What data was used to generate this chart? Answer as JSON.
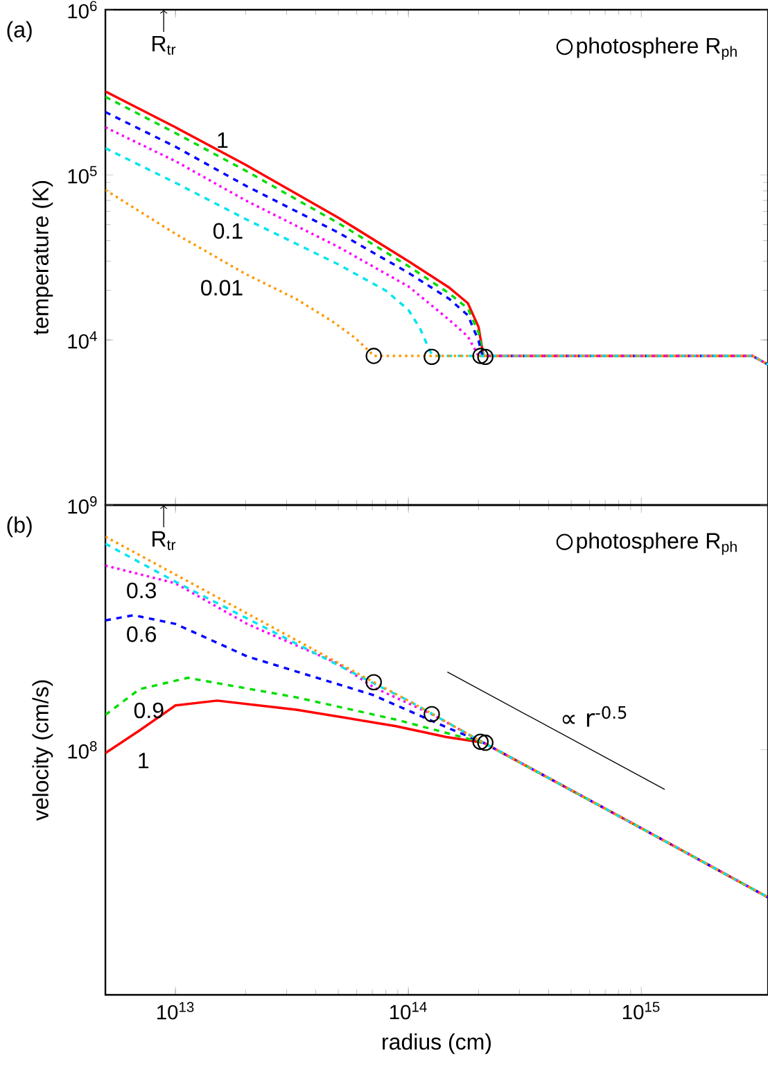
{
  "chart_data": [
    {
      "type": "line",
      "ylabel": "temperature (K)",
      "tick_labels": "y",
      "legend": "top right",
      "log": "xy",
      "annotations": [
        "(a)",
        "R$_{tr}$"
      ],
      "xlim": [
        5000000000000.0,
        3500000000000000.0
      ],
      "ylim": [
        1000,
        1000000
      ],
      "xticks": [
        {
          "value": 10000000000000.0,
          "label": null
        },
        {
          "value": 100000000000000.0,
          "label": null
        },
        {
          "value": 1000000000000000.0,
          "label": null
        }
      ],
      "yticks": [
        {
          "value": 10000,
          "label": "10$^{4}$"
        },
        {
          "value": 100000,
          "label": "10$^{5}$"
        },
        {
          "value": 1000000,
          "label": "10$^{6}$"
        }
      ],
      "series": [
        {
          "name": "1",
          "color": "#ff0000",
          "line_style": "solid",
          "x": [
            5000000000000.0,
            10000000000000.0,
            20000000000000.0,
            50000000000000.0,
            100000000000000.0,
            150000000000000.0,
            180000000000000.0,
            200000000000000.0,
            210000000000000.0,
            3000000000000000.0,
            3500000000000000.0
          ],
          "values": [
            320000,
            194000,
            115000,
            55000,
            30000,
            20700,
            16700,
            12000,
            8000,
            8000,
            7100
          ]
        },
        {
          "color": "#00dd00",
          "line_style": "dashed",
          "x": [
            5000000000000.0,
            10000000000000.0,
            20000000000000.0,
            50000000000000.0,
            100000000000000.0,
            150000000000000.0,
            180000000000000.0,
            200000000000000.0,
            210000000000000.0,
            3000000000000000.0,
            3500000000000000.0
          ],
          "values": [
            297000,
            179000,
            106000,
            51000,
            28000,
            19100,
            15500,
            11100,
            8000,
            8000,
            7100
          ]
        },
        {
          "color": "#0000ff",
          "line_style": "dashed",
          "x": [
            5000000000000.0,
            10000000000000.0,
            20000000000000.0,
            50000000000000.0,
            100000000000000.0,
            150000000000000.0,
            180000000000000.0,
            200000000000000.0,
            208000000000000.0,
            3000000000000000.0,
            3500000000000000.0
          ],
          "values": [
            240000,
            148000,
            86000,
            44700,
            25500,
            17700,
            14100,
            9900,
            8000,
            8000,
            7100
          ]
        },
        {
          "color": "#ff00ff",
          "line_style": "dotted",
          "x": [
            5000000000000.0,
            10000000000000.0,
            20000000000000.0,
            50000000000000.0,
            100000000000000.0,
            150000000000000.0,
            180000000000000.0,
            200000000000000.0,
            3000000000000000.0,
            3500000000000000.0
          ],
          "values": [
            194000,
            121000,
            70000,
            36600,
            21100,
            13200,
            10500,
            8000,
            8000,
            7100
          ]
        },
        {
          "name": "0.1",
          "color": "#00e5ee",
          "line_style": "dashed",
          "x": [
            5000000000000.0,
            10000000000000.0,
            20000000000000.0,
            50000000000000.0,
            80000000000000.0,
            100000000000000.0,
            112000000000000.0,
            121000000000000.0,
            127000000000000.0,
            3000000000000000.0,
            3500000000000000.0
          ],
          "values": [
            145000,
            89500,
            54000,
            28700,
            19900,
            15200,
            11800,
            9200,
            8000,
            8000,
            7100
          ]
        },
        {
          "name": "0.01",
          "color": "#ff9900",
          "line_style": "dotted",
          "x": [
            5000000000000.0,
            10000000000000.0,
            20000000000000.0,
            33000000000000.0,
            47000000000000.0,
            59000000000000.0,
            67000000000000.0,
            71000000000000.0,
            3000000000000000.0,
            3500000000000000.0
          ],
          "values": [
            81000,
            43900,
            25100,
            17700,
            13000,
            10300,
            8700,
            8000,
            8000,
            7100
          ]
        },
        {
          "type": "scatter",
          "name": "photosphere R$_{ph}$",
          "color": "#000000",
          "marker": "circle",
          "x": [
            71000000000000.0,
            126000000000000.0,
            204000000000000.0,
            214000000000000.0
          ],
          "values": [
            8000,
            7900,
            8000,
            7900
          ]
        }
      ]
    },
    {
      "type": "line",
      "xlabel": "radius (cm)",
      "ylabel": "velocity (cm/s)",
      "legend": "top right",
      "log": "xy",
      "annotations": [
        "(b)",
        "R$_{tr}$"
      ],
      "xlim": [
        5000000000000.0,
        3500000000000000.0
      ],
      "ylim": [
        10000000,
        1000000000
      ],
      "xticks": [
        {
          "value": 10000000000000.0,
          "label": "10$^{13}$"
        },
        {
          "value": 100000000000000.0,
          "label": "10$^{14}$"
        },
        {
          "value": 1000000000000000.0,
          "label": "10$^{15}$"
        }
      ],
      "yticks": [
        {
          "value": 100000000,
          "label": "10$^{8}$"
        },
        {
          "value": 1000000000,
          "label": "10$^{9}$"
        }
      ],
      "series": [
        {
          "name": "1",
          "color": "#ff0000",
          "line_style": "solid",
          "x": [
            5000000000000.0,
            7000000000000.0,
            10000000000000.0,
            15100000000000.0,
            33000000000000.0,
            88500000000000.0,
            145000000000000.0,
            210000000000000.0,
            1000000000000000.0,
            3500000000000000.0
          ],
          "values": [
            97000000,
            120000000,
            152000000,
            159000000,
            146000000,
            125000000,
            113000000,
            107000000,
            47900000,
            25000000
          ]
        },
        {
          "name": "0.9",
          "color": "#00dd00",
          "line_style": "dashed",
          "x": [
            5000000000000.0,
            7000000000000.0,
            11300000000000.0,
            33000000000000.0,
            88500000000000.0,
            210000000000000.0,
            1000000000000000.0,
            3500000000000000.0
          ],
          "values": [
            139000000,
            177000000,
            197000000,
            164000000,
            133000000,
            107000000,
            47900000,
            25000000
          ]
        },
        {
          "name": "0.6",
          "color": "#0000ff",
          "line_style": "dashed",
          "x": [
            5000000000000.0,
            6600000000000.0,
            10000000000000.0,
            20300000000000.0,
            70000000000000.0,
            145000000000000.0,
            210000000000000.0,
            1000000000000000.0,
            3500000000000000.0
          ],
          "values": [
            338000000,
            355000000,
            327000000,
            241000000,
            168000000,
            124000000,
            107000000,
            47900000,
            25000000
          ]
        },
        {
          "name": "0.3",
          "color": "#ff00ff",
          "line_style": "dotted",
          "x": [
            5000000000000.0,
            10000000000000.0,
            20300000000000.0,
            50000000000000.0,
            71000000000000.0,
            126000000000000.0,
            210000000000000.0,
            1000000000000000.0,
            3500000000000000.0
          ],
          "values": [
            566000000,
            479000000,
            327000000,
            225000000,
            180000000,
            140000000,
            107000000,
            47900000,
            25000000
          ]
        },
        {
          "color": "#00e5ee",
          "line_style": "dashed",
          "x": [
            5000000000000.0,
            10000000000000.0,
            71000000000000.0,
            100000000000000.0,
            210000000000000.0,
            1000000000000000.0,
            3500000000000000.0
          ],
          "values": [
            695000000,
            486000000,
            187000000,
            159000000,
            107000000,
            47900000,
            25000000
          ]
        },
        {
          "color": "#ff9900",
          "line_style": "dotted",
          "x": [
            5000000000000.0,
            10000000000000.0,
            71000000000000.0,
            100000000000000.0,
            210000000000000.0,
            1000000000000000.0,
            3500000000000000.0
          ],
          "values": [
            743000000,
            520000000,
            189000000,
            159000000,
            107000000,
            47900000,
            25000000
          ]
        },
        {
          "type": "scatter",
          "name": "photosphere R$_{ph}$",
          "color": "#000000",
          "marker": "circle",
          "x": [
            71000000000000.0,
            126000000000000.0,
            204000000000000.0,
            214000000000000.0
          ],
          "values": [
            189000000,
            140000000,
            108000000,
            107000000
          ]
        },
        {
          "type": "line",
          "name": "∝ r$^{-0.5}$",
          "color": "#000000",
          "line_style": "solid",
          "x": [
            147000000000000.0,
            1260000000000000.0
          ],
          "values": [
            208000000,
            69000000
          ]
        }
      ]
    }
  ]
}
